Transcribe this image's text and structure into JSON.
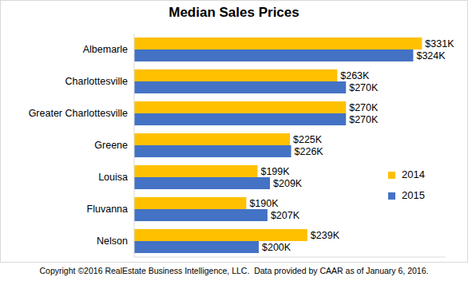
{
  "chart_data": {
    "type": "bar",
    "title": "Median Sales Prices",
    "orientation": "horizontal",
    "categories": [
      "Albemarle",
      "Charlottesville",
      "Greater Charlottesville",
      "Greene",
      "Louisa",
      "Fluvanna",
      "Nelson"
    ],
    "series": [
      {
        "name": "2014",
        "color": "#FFC000",
        "values": [
          331,
          263,
          270,
          225,
          199,
          190,
          239
        ],
        "value_labels": [
          "$331K",
          "$263K",
          "$270K",
          "$225K",
          "$199K",
          "$190K",
          "$239K"
        ]
      },
      {
        "name": "2015",
        "color": "#4472C4",
        "values": [
          324,
          270,
          270,
          226,
          209,
          207,
          200
        ],
        "value_labels": [
          "$324K",
          "$270K",
          "$270K",
          "$226K",
          "$209K",
          "$207K",
          "$200K"
        ]
      }
    ],
    "xlim": [
      100,
      350
    ],
    "tick_labels": "y",
    "grid": false,
    "data_labels": true,
    "legend": "right",
    "footnote": "Copyright ©2016 RealEstate Business Intelligence, LLC.  Data provided by CAAR as of January 6, 2016."
  }
}
